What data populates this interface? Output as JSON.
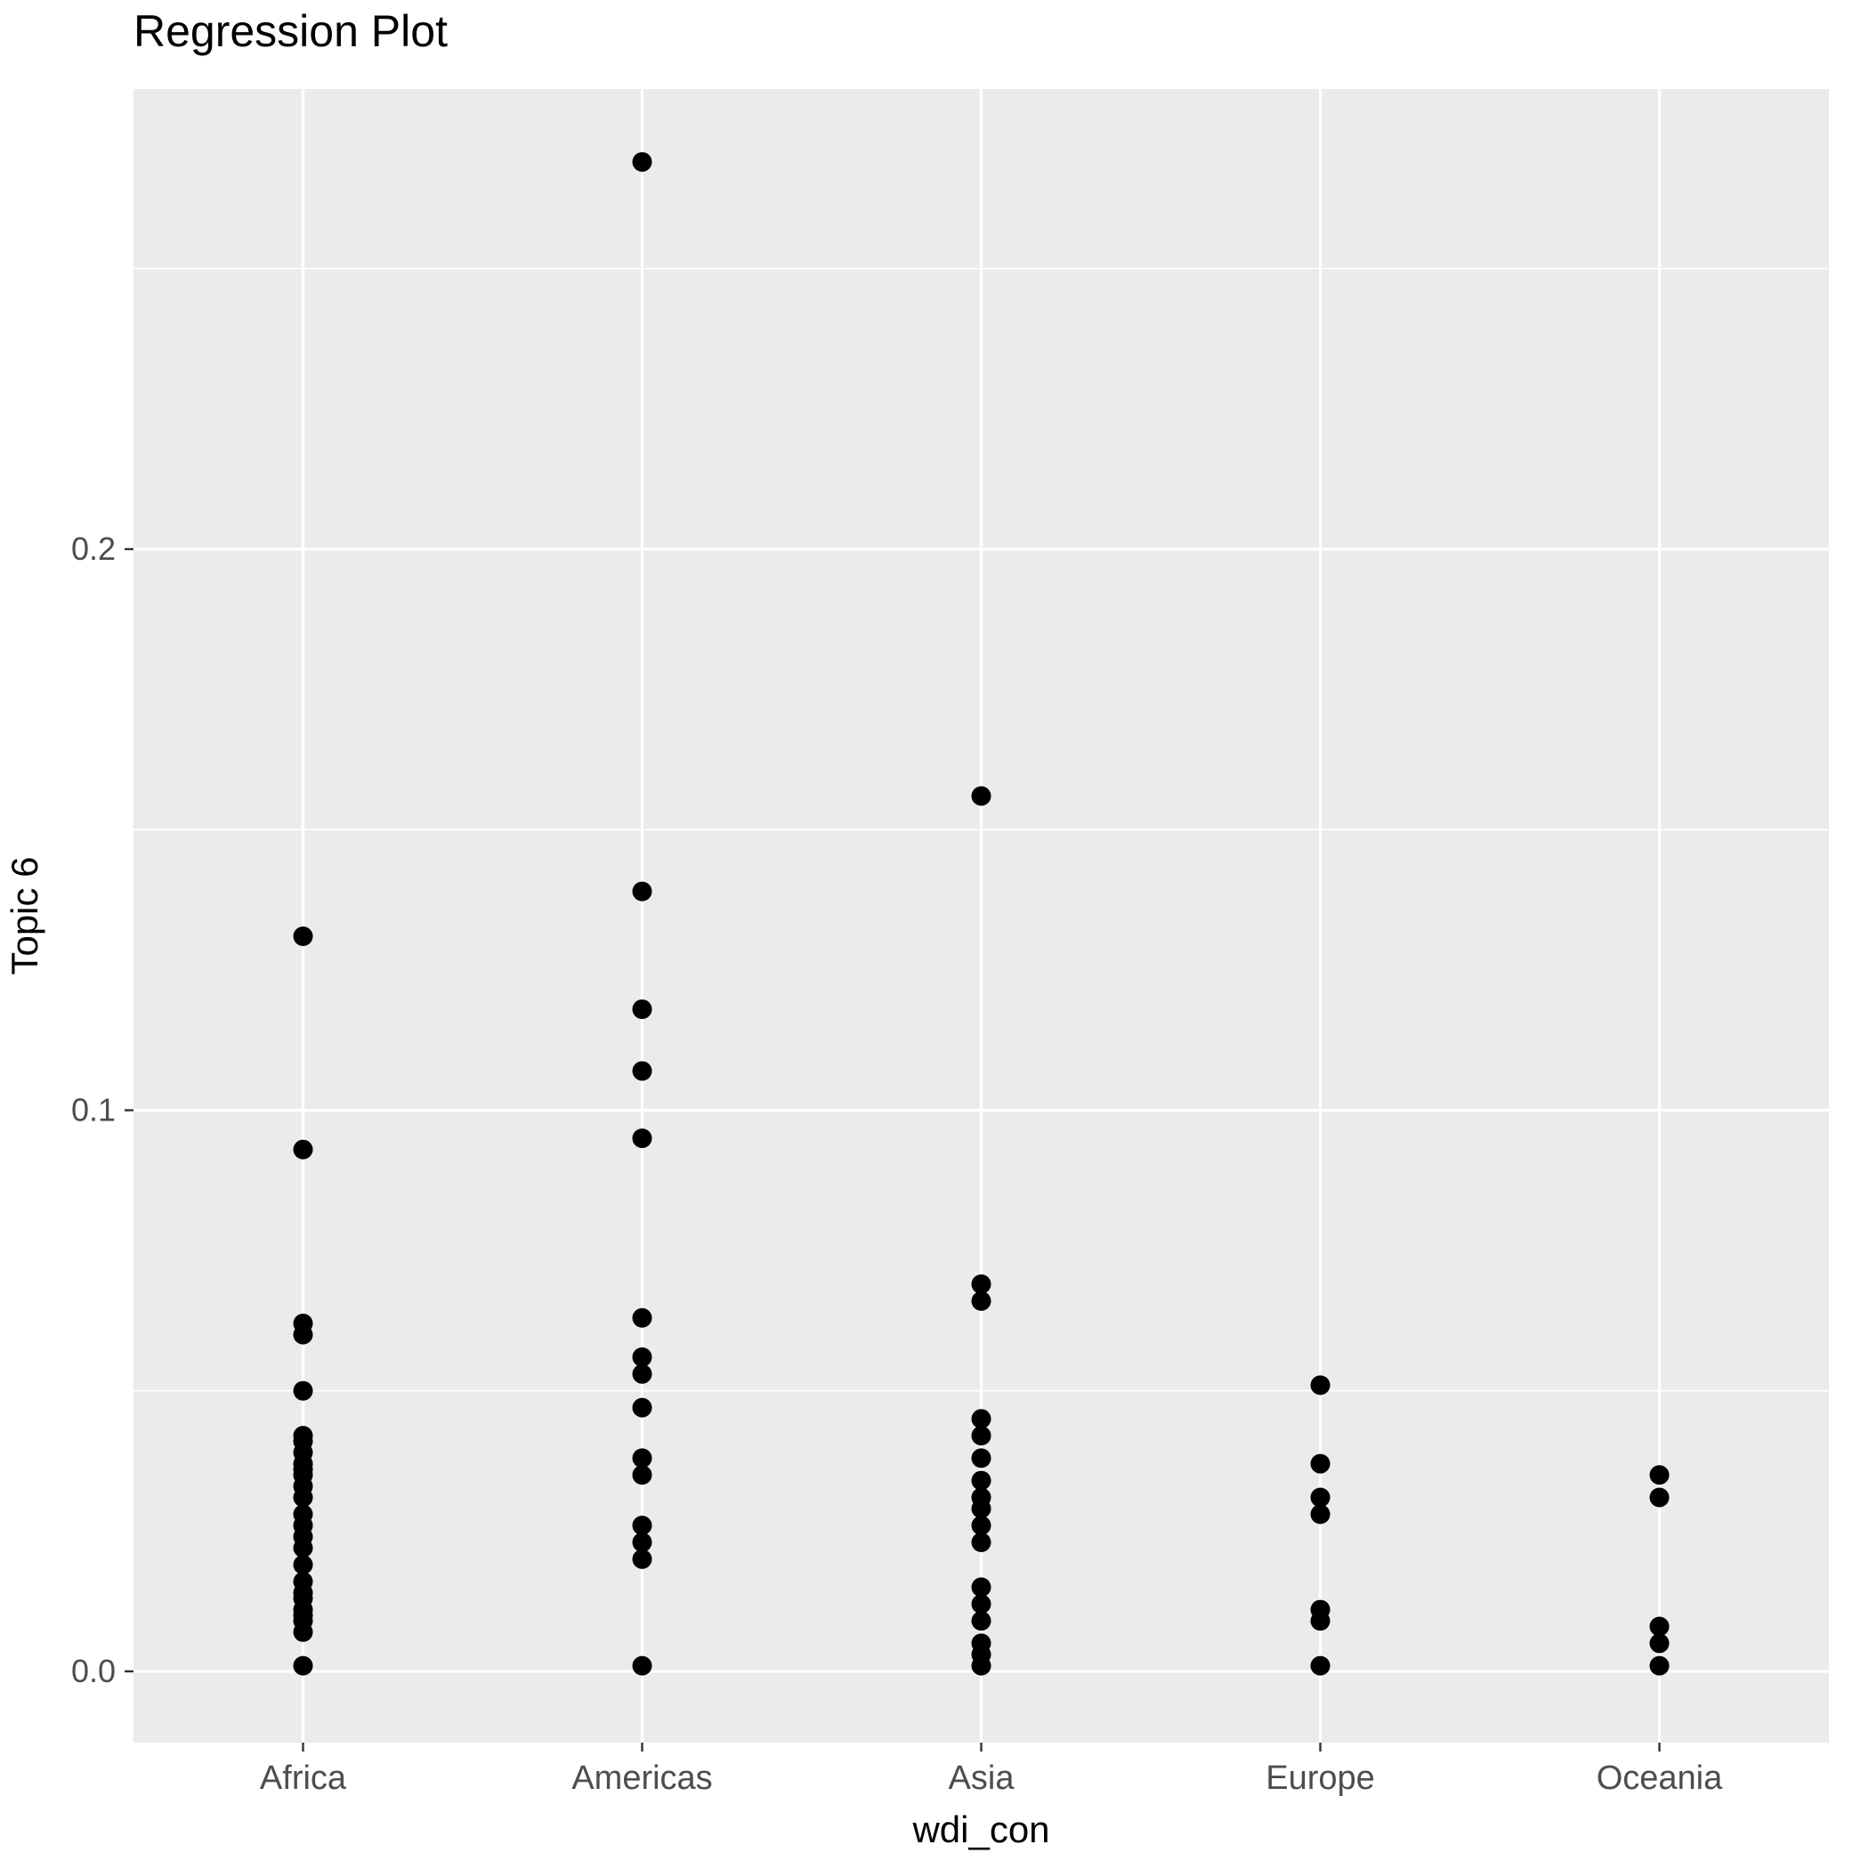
{
  "figure": {
    "title": "Regression Plot",
    "background_color": "#FFFFFF"
  },
  "chart_data": {
    "type": "scatter",
    "title": "Regression Plot",
    "xlabel": "wdi_con",
    "ylabel": "Topic 6",
    "categories": [
      "Africa",
      "Americas",
      "Asia",
      "Europe",
      "Oceania"
    ],
    "series": [
      {
        "name": "Africa",
        "values": [
          0.131,
          0.093,
          0.062,
          0.06,
          0.05,
          0.042,
          0.041,
          0.039,
          0.037,
          0.036,
          0.035,
          0.033,
          0.031,
          0.028,
          0.026,
          0.024,
          0.022,
          0.019,
          0.016,
          0.014,
          0.013,
          0.011,
          0.01,
          0.009,
          0.007,
          0.001
        ]
      },
      {
        "name": "Americas",
        "values": [
          0.269,
          0.139,
          0.118,
          0.107,
          0.095,
          0.063,
          0.056,
          0.053,
          0.047,
          0.038,
          0.035,
          0.026,
          0.023,
          0.02,
          0.001
        ]
      },
      {
        "name": "Asia",
        "values": [
          0.156,
          0.069,
          0.066,
          0.045,
          0.042,
          0.038,
          0.034,
          0.031,
          0.029,
          0.026,
          0.023,
          0.015,
          0.012,
          0.009,
          0.005,
          0.003,
          0.001
        ]
      },
      {
        "name": "Europe",
        "values": [
          0.051,
          0.037,
          0.031,
          0.028,
          0.011,
          0.009,
          0.001
        ]
      },
      {
        "name": "Oceania",
        "values": [
          0.035,
          0.031,
          0.008,
          0.005,
          0.001
        ]
      }
    ],
    "y_ticks": [
      {
        "value": 0.0,
        "label": "0.0"
      },
      {
        "value": 0.1,
        "label": "0.1"
      },
      {
        "value": 0.2,
        "label": "0.2"
      }
    ],
    "y_minor_ticks": [
      0.05,
      0.15,
      0.25
    ],
    "ylim": [
      -0.0127,
      0.282
    ],
    "grid": true,
    "legend_position": "none",
    "colors": {
      "panel_background": "#EBEBEB",
      "grid_major": "#FFFFFF",
      "grid_minor": "#FFFFFF",
      "point": "#000000",
      "tick_label": "#4D4D4D",
      "axis_title": "#000000",
      "title": "#000000"
    }
  }
}
